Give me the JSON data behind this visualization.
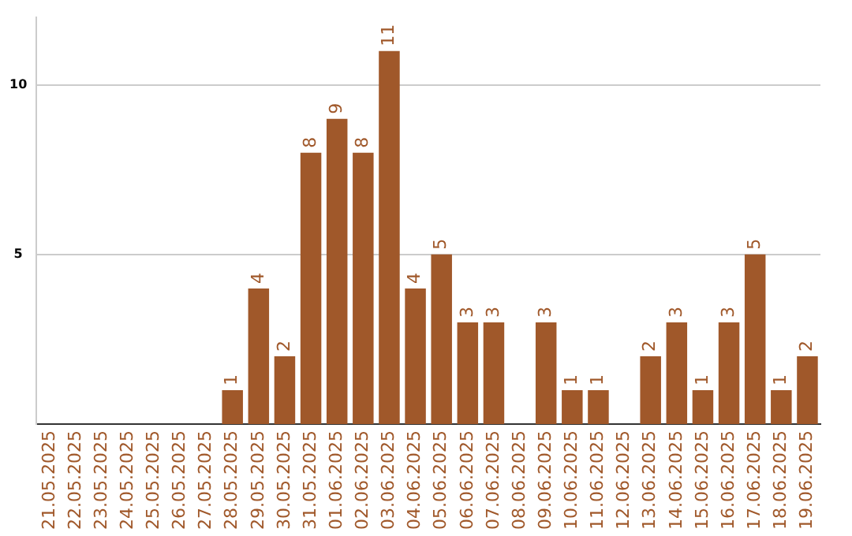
{
  "chart_data": {
    "type": "bar",
    "categories": [
      "21.05.2025",
      "22.05.2025",
      "23.05.2025",
      "24.05.2025",
      "25.05.2025",
      "26.05.2025",
      "27.05.2025",
      "28.05.2025",
      "29.05.2025",
      "30.05.2025",
      "31.05.2025",
      "01.06.2025",
      "02.06.2025",
      "03.06.2025",
      "04.06.2025",
      "05.06.2025",
      "06.06.2025",
      "07.06.2025",
      "08.06.2025",
      "09.06.2025",
      "10.06.2025",
      "11.06.2025",
      "12.06.2025",
      "13.06.2025",
      "14.06.2025",
      "15.06.2025",
      "16.06.2025",
      "17.06.2025",
      "18.06.2025",
      "19.06.2025"
    ],
    "values": [
      0,
      0,
      0,
      0,
      0,
      0,
      0,
      1,
      4,
      2,
      8,
      9,
      8,
      11,
      4,
      5,
      3,
      3,
      0,
      3,
      1,
      1,
      0,
      2,
      3,
      1,
      3,
      5,
      1,
      2
    ],
    "value_labels": [
      null,
      null,
      null,
      null,
      null,
      null,
      null,
      "1",
      "4",
      "2",
      "8",
      "9",
      "8",
      "11",
      "4",
      "5",
      "3",
      "3",
      null,
      "3",
      "1",
      "1",
      null,
      "2",
      "3",
      "1",
      "3",
      "5",
      "1",
      "2"
    ],
    "color": "#a0582a",
    "ylim": [
      0,
      12
    ],
    "yticks": [
      5,
      10
    ],
    "grid": "y"
  }
}
